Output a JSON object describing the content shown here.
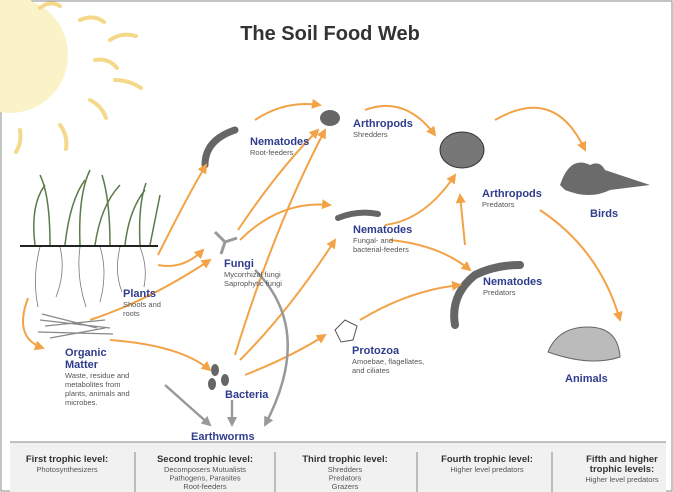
{
  "title": "The Soil Food Web",
  "nodes": [
    {
      "title": [
        "Nematodes"
      ],
      "detail": [
        "Root-feeders"
      ]
    },
    {
      "title": [
        "Arthropods"
      ],
      "detail": [
        "Shredders"
      ]
    },
    {
      "title": [
        "Arthropods"
      ],
      "detail": [
        "Predators"
      ]
    },
    {
      "title": [
        "Birds"
      ]
    },
    {
      "title": [
        "Plants"
      ],
      "detail": [
        "Shoots and",
        "roots"
      ]
    },
    {
      "title": [
        "Fungi"
      ],
      "detail": [
        "Mycorrhizal fungi",
        "Saprophytic fungi"
      ]
    },
    {
      "title": [
        "Nematodes"
      ],
      "detail": [
        "Fungal- and",
        "bacterial-feeders"
      ]
    },
    {
      "title": [
        "Nematodes"
      ],
      "detail": [
        "Predators"
      ]
    },
    {
      "title": [
        "Organic",
        "Matter"
      ],
      "detail": [
        "Waste, residue and",
        "metabolites from",
        "plants, animals and",
        "microbes."
      ]
    },
    {
      "title": [
        "Protozoa"
      ],
      "detail": [
        "Amoebae, flagellates,",
        "and ciliates"
      ]
    },
    {
      "title": [
        "Bacteria"
      ]
    },
    {
      "title": [
        "Animals"
      ]
    },
    {
      "title": [
        "Earthworms"
      ]
    }
  ],
  "trophic_levels": [
    {
      "label": [
        "First trophic level:"
      ],
      "detail": [
        "Photosynthesizers"
      ]
    },
    {
      "label": [
        "Second trophic level:"
      ],
      "detail": [
        "Decomposers Mutualists",
        "Pathogens, Parasites",
        "Root-feeders"
      ]
    },
    {
      "label": [
        "Third trophic level:"
      ],
      "detail": [
        "Shredders",
        "Predators",
        "Grazers"
      ]
    },
    {
      "label": [
        "Fourth trophic level:"
      ],
      "detail": [
        "Higher level predators"
      ]
    },
    {
      "label": [
        "Fifth and higher",
        "trophic levels:"
      ],
      "detail": [
        "Higher level predators"
      ]
    }
  ]
}
